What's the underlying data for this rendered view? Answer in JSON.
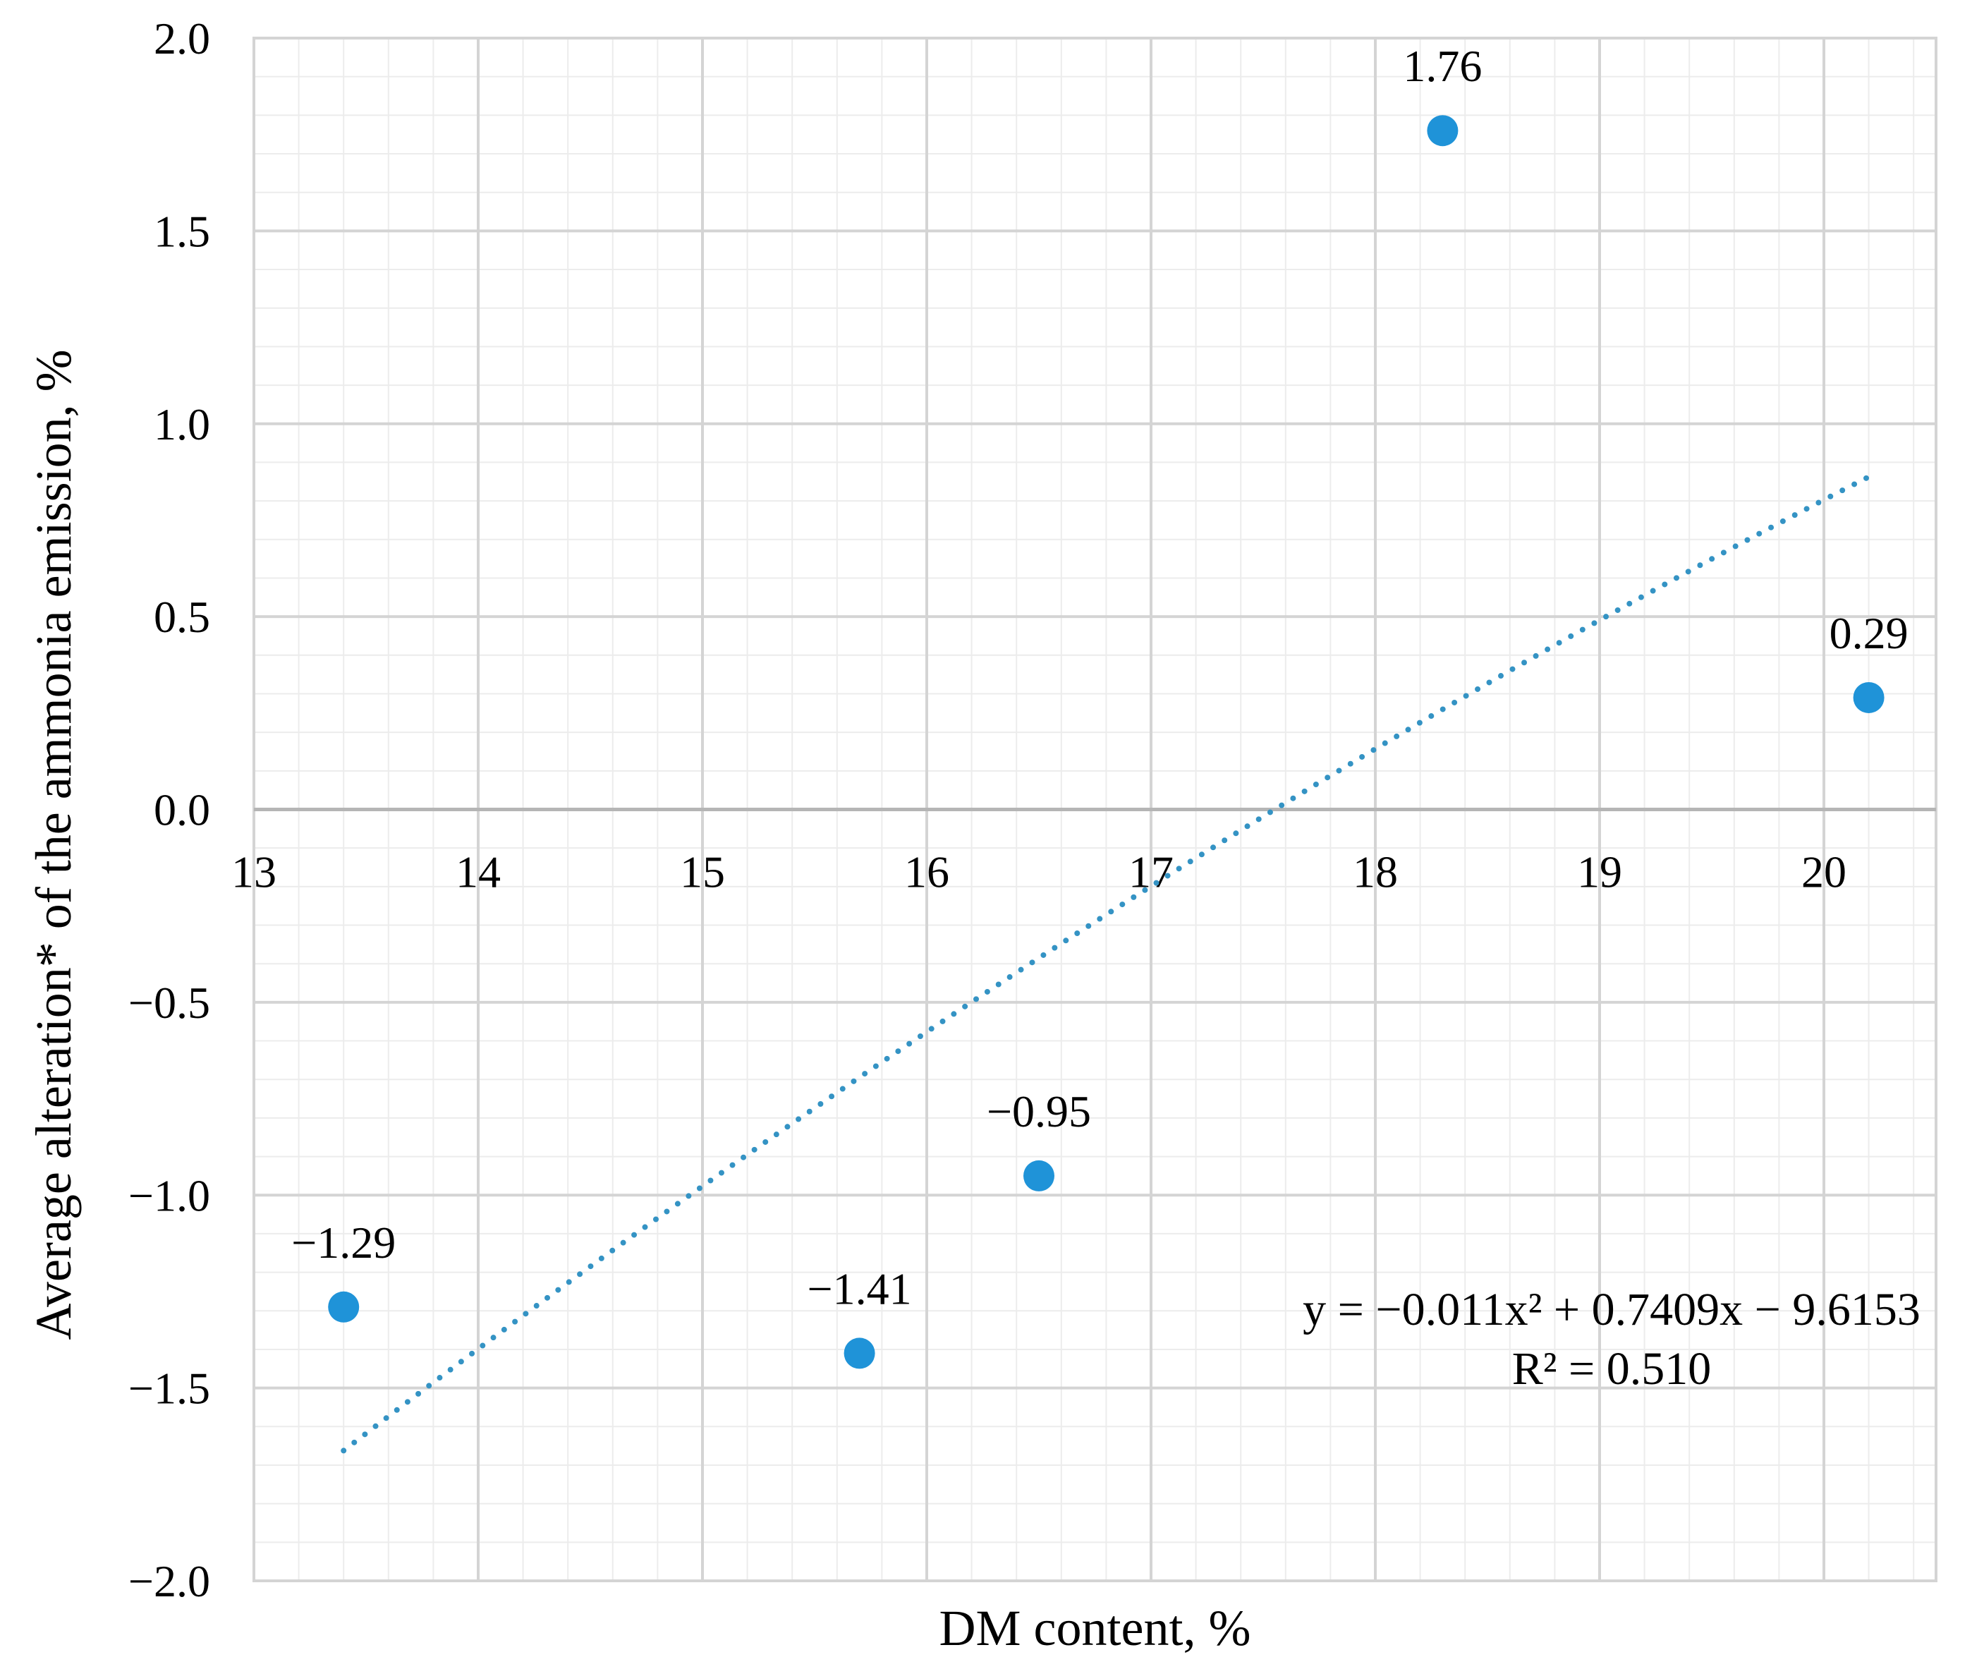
{
  "chart_data": {
    "type": "scatter",
    "xlabel": "DM content, %",
    "ylabel": "Average alteration* of the ammonia emission, %",
    "xlim": [
      13,
      20.5
    ],
    "ylim": [
      -2.0,
      2.0
    ],
    "x_ticks": [
      13,
      14,
      15,
      16,
      17,
      18,
      19,
      20
    ],
    "x_tick_labels": [
      "13",
      "14",
      "15",
      "16",
      "17",
      "18",
      "19",
      "20"
    ],
    "y_ticks": [
      2.0,
      1.5,
      1.0,
      0.5,
      0.0,
      -0.5,
      -1.0,
      -1.5,
      -2.0
    ],
    "y_tick_labels": [
      "2.0",
      "1.5",
      "1.0",
      "0.5",
      "0.0",
      "−0.5",
      "−1.0",
      "−1.5",
      "−2.0"
    ],
    "grid": true,
    "legend": "none",
    "series": [
      {
        "x": [
          13.4,
          15.7,
          16.5,
          18.3,
          20.2
        ],
        "y": [
          -1.29,
          -1.41,
          -0.95,
          1.76,
          0.29
        ],
        "labels": [
          "−1.29",
          "−1.41",
          "−0.95",
          "1.76",
          "0.29"
        ],
        "color": "#1f93d8"
      }
    ],
    "trendline": {
      "type": "polynomial",
      "style": "dotted",
      "color": "#3493c4",
      "coefficients": [
        -0.011,
        0.7409,
        -9.6153
      ],
      "x_range": [
        13.4,
        20.2
      ],
      "equation": "y = −0.011x² + 0.7409x − 9.6153",
      "r_squared": "R² = 0.510"
    }
  }
}
